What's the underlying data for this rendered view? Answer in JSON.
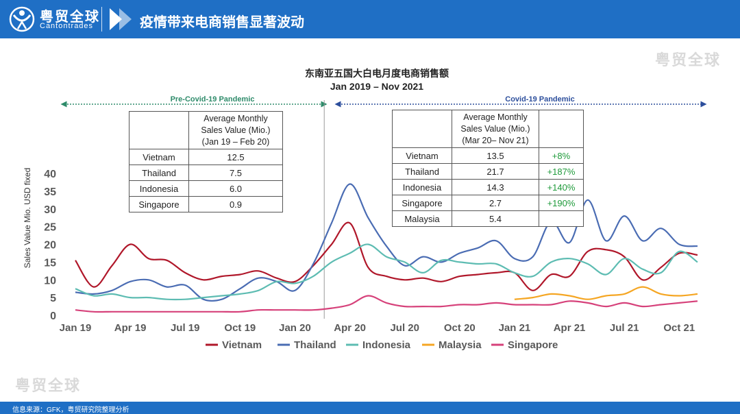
{
  "header": {
    "brand_cn": "粤贸全球",
    "brand_en": "Cantontrades",
    "title": "疫情带来电商销售显著波动"
  },
  "watermark": "粤贸全球",
  "footer": {
    "source": "信息来源：GFK，粤贸研究院整理分析"
  },
  "periods": {
    "pre": "Pre-Covid-19 Pandemic",
    "post": "Covid-19 Pandemic"
  },
  "table_pre": {
    "header_lines": [
      "Average Monthly",
      "Sales Value (Mio.)",
      "(Jan 19 – Feb 20)"
    ],
    "rows": [
      {
        "country": "Vietnam",
        "value": "12.5"
      },
      {
        "country": "Thailand",
        "value": "7.5"
      },
      {
        "country": "Indonesia",
        "value": "6.0"
      },
      {
        "country": "Singapore",
        "value": "0.9"
      }
    ]
  },
  "table_post": {
    "header_lines": [
      "Average Monthly",
      "Sales Value (Mio.)",
      "(Mar 20– Nov 21)"
    ],
    "rows": [
      {
        "country": "Vietnam",
        "value": "13.5",
        "change": "+8%"
      },
      {
        "country": "Thailand",
        "value": "21.7",
        "change": "+187%"
      },
      {
        "country": "Indonesia",
        "value": "14.3",
        "change": "+140%"
      },
      {
        "country": "Singapore",
        "value": "2.7",
        "change": "+190%"
      },
      {
        "country": "Malaysia",
        "value": "5.4",
        "change": ""
      }
    ]
  },
  "chart_data": {
    "type": "line",
    "title": "东南亚五国大白电月度电商销售额",
    "subtitle": "Jan 2019 – Nov 2021",
    "ylabel": "Sales Value Mio. USD fixed",
    "xlabel": "",
    "ylim": [
      0,
      40
    ],
    "yticks": [
      0,
      5,
      10,
      15,
      20,
      25,
      30,
      35,
      40
    ],
    "x": [
      "Jan 19",
      "Feb 19",
      "Mar 19",
      "Apr 19",
      "May 19",
      "Jun 19",
      "Jul 19",
      "Aug 19",
      "Sep 19",
      "Oct 19",
      "Nov 19",
      "Dec 19",
      "Jan 20",
      "Feb 20",
      "Mar 20",
      "Apr 20",
      "May 20",
      "Jun 20",
      "Jul 20",
      "Aug 20",
      "Sep 20",
      "Oct 20",
      "Nov 20",
      "Dec 20",
      "Jan 21",
      "Feb 21",
      "Mar 21",
      "Apr 21",
      "May 21",
      "Jun 21",
      "Jul 21",
      "Aug 21",
      "Sep 21",
      "Oct 21",
      "Nov 21"
    ],
    "xtick_labels": [
      {
        "index": 0,
        "label": "Jan 19"
      },
      {
        "index": 3,
        "label": "Apr 19"
      },
      {
        "index": 6,
        "label": "Jul 19"
      },
      {
        "index": 9,
        "label": "Oct 19"
      },
      {
        "index": 12,
        "label": "Jan 20"
      },
      {
        "index": 15,
        "label": "Apr 20"
      },
      {
        "index": 18,
        "label": "Jul 20"
      },
      {
        "index": 21,
        "label": "Oct 20"
      },
      {
        "index": 24,
        "label": "Jan 21"
      },
      {
        "index": 27,
        "label": "Apr 21"
      },
      {
        "index": 30,
        "label": "Jul 21"
      },
      {
        "index": 33,
        "label": "Oct 21"
      }
    ],
    "covid_divider_index": 13.6,
    "legend_position": "bottom",
    "series": [
      {
        "name": "Vietnam",
        "color": "#b0172a",
        "values": [
          15.5,
          8,
          14,
          20,
          16,
          15.5,
          12,
          10,
          11,
          11.5,
          12.5,
          10.5,
          9.5,
          14,
          20,
          26,
          13.5,
          11,
          10,
          10.5,
          9.5,
          11,
          11.5,
          12,
          12,
          7,
          11.5,
          11,
          18,
          18.5,
          16.5,
          10,
          13.5,
          17.5,
          17
        ]
      },
      {
        "name": "Thailand",
        "color": "#4a6cb3",
        "values": [
          6.5,
          6,
          7,
          9.5,
          10,
          8,
          8.5,
          4.5,
          4.5,
          7.5,
          10.5,
          9.5,
          7,
          14.5,
          26,
          37,
          27.5,
          19.5,
          14,
          16.5,
          15,
          17.5,
          19,
          21,
          16,
          16.5,
          26.5,
          20.5,
          32.5,
          21,
          28,
          21,
          24.5,
          20,
          19.5
        ]
      },
      {
        "name": "Indonesia",
        "color": "#5dbcb2",
        "values": [
          7.5,
          5.5,
          6,
          5,
          5,
          4.5,
          4.5,
          5,
          5.5,
          6,
          7,
          9.5,
          9,
          11,
          15,
          17.5,
          20,
          16.5,
          15,
          12,
          15.5,
          15,
          14.5,
          14.5,
          12,
          11,
          15,
          16,
          14.5,
          11.5,
          16,
          13,
          12,
          18,
          15
        ]
      },
      {
        "name": "Malaysia",
        "color": "#f5a623",
        "values": [
          null,
          null,
          null,
          null,
          null,
          null,
          null,
          null,
          null,
          null,
          null,
          null,
          null,
          null,
          null,
          null,
          null,
          null,
          null,
          null,
          null,
          null,
          null,
          null,
          4.5,
          5,
          6,
          5.5,
          4.5,
          5.5,
          6,
          8,
          6,
          5.5,
          6
        ]
      },
      {
        "name": "Singapore",
        "color": "#d6417a",
        "values": [
          1.5,
          1,
          1,
          1,
          1,
          1,
          1,
          1,
          1,
          1,
          1.5,
          1.5,
          1.5,
          1.5,
          2,
          3,
          5.5,
          3.5,
          2.5,
          2.5,
          2.5,
          3,
          3,
          3.5,
          3,
          3,
          3,
          4,
          3.5,
          2.5,
          3.5,
          2.5,
          3,
          3.5,
          4
        ]
      }
    ]
  }
}
